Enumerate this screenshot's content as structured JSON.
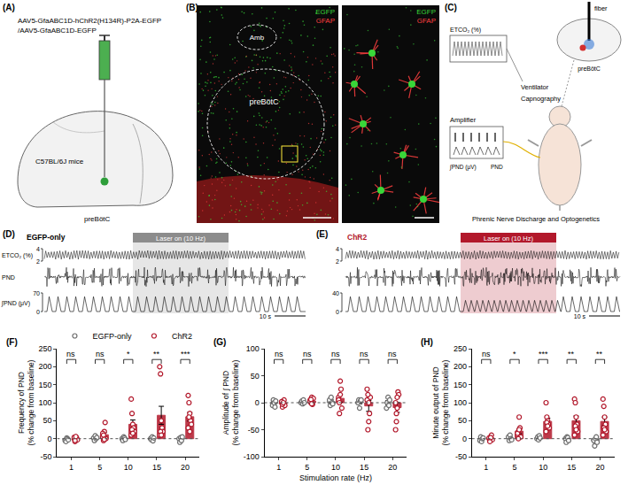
{
  "panels": {
    "A": {
      "letter": "(A)",
      "virus": [
        "AAV5-GfaABC1D-hChR2(H134R)-P2A-EGFP",
        "/AAV5-GfaABC1D-EGFP"
      ],
      "mouse": "C57BL/6J mice",
      "target": "preBötC"
    },
    "B": {
      "letter": "(B)",
      "channels": [
        {
          "name": "EGFP",
          "color": "#39d639"
        },
        {
          "name": "GFAP",
          "color": "#ff4040"
        }
      ],
      "regions": [
        "Amb",
        "preBötC"
      ]
    },
    "C": {
      "letter": "(C)",
      "labels": {
        "etco2": "ETCO₂ (%)",
        "ventilator": "Ventilator",
        "capnography": "Capnography",
        "fiber": "fiber",
        "target": "preBötC",
        "amplifier": "Amplifier",
        "integrated": "∫PND (μV)",
        "raw": "PND"
      },
      "caption": "Phrenic Nerve Discharge and Optogenetics"
    },
    "D": {
      "letter": "(D)",
      "title": "EGFP-only",
      "laser": "Laser on (10 Hz)",
      "color": "#8c8c8c",
      "rows": [
        {
          "label": "ETCO₂ (%)",
          "ticks": [
            4,
            2
          ]
        },
        {
          "label": "PND",
          "ticks": []
        },
        {
          "label": "∫PND (μV)",
          "ticks": [
            70,
            0
          ]
        }
      ],
      "scale": "10 s"
    },
    "E": {
      "letter": "(E)",
      "title": "ChR2",
      "laser": "Laser on (10 Hz)",
      "color": "#b2182b",
      "rows": [
        {
          "ticks": [
            4,
            2
          ]
        },
        {
          "ticks": []
        },
        {
          "ticks": [
            40,
            0
          ]
        }
      ],
      "scale": "10 s"
    }
  },
  "chart_data": [
    {
      "panel": "(F)",
      "type": "bar",
      "categories": [
        "1",
        "5",
        "10",
        "15",
        "20"
      ],
      "y_label": "Frequency of PND (% change from baseline)",
      "ylim": [
        -50,
        250
      ],
      "yticks": [
        -50,
        0,
        50,
        100,
        150,
        200,
        250
      ],
      "legend": "top",
      "significance": [
        "ns",
        "ns",
        "*",
        "**",
        "***"
      ],
      "series": [
        {
          "name": "EGFP-only",
          "color": "#6e6e6e",
          "marker": "circle",
          "values": [
            -3,
            2,
            0,
            0,
            -1
          ],
          "errors": [
            2,
            2,
            2,
            2,
            3
          ],
          "points": [
            [
              -5,
              -8,
              2,
              0,
              -3
            ],
            [
              2,
              -5,
              8,
              0,
              3
            ],
            [
              0,
              -5,
              5,
              2,
              -2
            ],
            [
              0,
              -3,
              5,
              -6,
              2
            ],
            [
              0,
              -10,
              3,
              -5,
              5
            ]
          ]
        },
        {
          "name": "ChR2",
          "color": "#b2182b",
          "marker": "circle",
          "values": [
            0,
            11,
            40,
            65,
            61
          ],
          "errors": [
            2,
            6,
            12,
            25,
            12
          ],
          "points": [
            [
              0,
              -8,
              5,
              2,
              -3,
              4,
              -5,
              6
            ],
            [
              5,
              -5,
              20,
              45,
              0,
              15,
              10,
              -2
            ],
            [
              110,
              70,
              40,
              30,
              20,
              10,
              25,
              15
            ],
            [
              200,
              180,
              50,
              30,
              20,
              10,
              20,
              10
            ],
            [
              120,
              100,
              70,
              50,
              40,
              30,
              60,
              20
            ]
          ]
        }
      ]
    },
    {
      "panel": "(G)",
      "type": "bar",
      "categories": [
        "1",
        "5",
        "10",
        "15",
        "20"
      ],
      "x_label": "Stimulation rate (Hz)",
      "y_label": "Amplitude of ∫ PND (% change from baseline)",
      "ylim": [
        -100,
        100
      ],
      "yticks": [
        -100,
        -50,
        0,
        50,
        100
      ],
      "significance": [
        "ns",
        "ns",
        "ns",
        "ns",
        "ns"
      ],
      "series": [
        {
          "name": "EGFP-only",
          "color": "#6e6e6e",
          "marker": "circle",
          "values": [
            -1,
            1,
            2,
            1,
            0
          ],
          "errors": [
            2,
            1,
            3,
            3,
            4
          ],
          "points": [
            [
              -5,
              5,
              0,
              -8,
              3
            ],
            [
              0,
              3,
              -2,
              5,
              0
            ],
            [
              5,
              -5,
              10,
              0,
              -2
            ],
            [
              0,
              5,
              -10,
              3,
              5
            ],
            [
              -10,
              0,
              10,
              -5,
              5
            ]
          ]
        },
        {
          "name": "ChR2",
          "color": "#b2182b",
          "marker": "circle",
          "values": [
            -1,
            3,
            8,
            -6,
            -9
          ],
          "errors": [
            2,
            2,
            7,
            10,
            9
          ],
          "points": [
            [
              0,
              -8,
              3,
              5,
              -5,
              2,
              -3,
              0
            ],
            [
              5,
              0,
              10,
              -3,
              8,
              2,
              6,
              -2
            ],
            [
              10,
              -20,
              40,
              25,
              -10,
              5,
              0,
              15
            ],
            [
              5,
              -50,
              -35,
              -20,
              10,
              25,
              15,
              0
            ],
            [
              -50,
              -35,
              -10,
              20,
              15,
              0,
              -20,
              10
            ]
          ]
        }
      ]
    },
    {
      "panel": "(H)",
      "type": "bar",
      "categories": [
        "1",
        "5",
        "10",
        "15",
        "20"
      ],
      "y_label": "Minute output of PND (% change from baseline)",
      "ylim": [
        -50,
        250
      ],
      "yticks": [
        -50,
        0,
        50,
        100,
        150,
        200,
        250
      ],
      "significance": [
        "ns",
        "*",
        "***",
        "**",
        "**"
      ],
      "series": [
        {
          "name": "EGFP-only",
          "color": "#6e6e6e",
          "marker": "circle",
          "values": [
            -1,
            1,
            2,
            -1,
            -6
          ],
          "errors": [
            2,
            3,
            2,
            3,
            4
          ],
          "points": [
            [
              -5,
              5,
              -8,
              0,
              2
            ],
            [
              5,
              -5,
              10,
              0,
              -3
            ],
            [
              0,
              5,
              -3,
              8,
              2
            ],
            [
              0,
              -10,
              5,
              3,
              -5
            ],
            [
              -5,
              -20,
              0,
              5,
              -10
            ]
          ]
        },
        {
          "name": "ChR2",
          "color": "#b2182b",
          "marker": "circle",
          "values": [
            1,
            21,
            48,
            50,
            48
          ],
          "errors": [
            2,
            7,
            9,
            13,
            12
          ],
          "points": [
            [
              0,
              -5,
              5,
              10,
              -3,
              2,
              -8,
              3
            ],
            [
              10,
              20,
              60,
              30,
              5,
              15,
              0,
              25
            ],
            [
              100,
              60,
              50,
              40,
              30,
              20,
              45,
              35
            ],
            [
              110,
              100,
              60,
              40,
              20,
              10,
              35,
              25
            ],
            [
              110,
              90,
              60,
              40,
              20,
              10,
              30,
              25
            ]
          ]
        }
      ]
    }
  ]
}
